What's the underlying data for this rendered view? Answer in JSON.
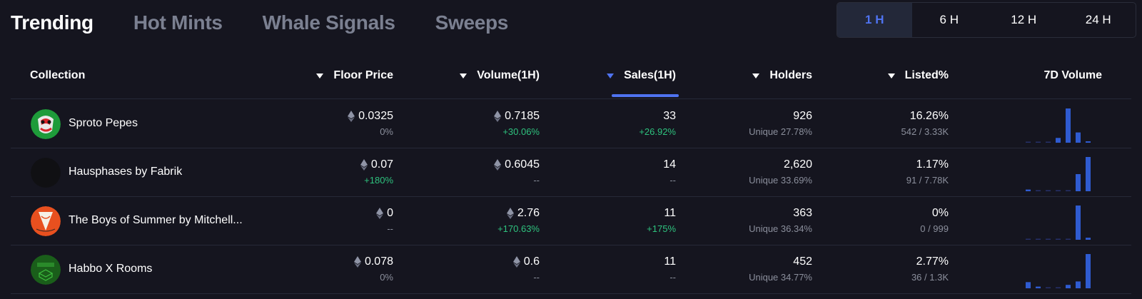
{
  "tabs": [
    {
      "label": "Trending",
      "active": true
    },
    {
      "label": "Hot Mints",
      "active": false
    },
    {
      "label": "Whale Signals",
      "active": false
    },
    {
      "label": "Sweeps",
      "active": false
    }
  ],
  "time_filters": [
    {
      "label": "1 H",
      "active": true
    },
    {
      "label": "6 H",
      "active": false
    },
    {
      "label": "12 H",
      "active": false
    },
    {
      "label": "24 H",
      "active": false
    }
  ],
  "columns": {
    "collection": "Collection",
    "floor_price": "Floor Price",
    "volume": "Volume(1H)",
    "sales": "Sales(1H)",
    "holders": "Holders",
    "listed": "Listed%",
    "volume_7d": "7D Volume"
  },
  "sorted_column": "sales",
  "colors": {
    "accent": "#4f73f0",
    "positive": "#2ec27e",
    "bar": "#2f5bd0",
    "bar_baseline": "#25306a"
  },
  "icons": {
    "currency": "ethereum-icon",
    "sort": "caret-down-icon"
  },
  "rows": [
    {
      "name": "Sproto Pepes",
      "avatar": "sproto-pepes-avatar",
      "floor": "0.0325",
      "floor_change": "0%",
      "floor_positive": false,
      "volume": "0.7185",
      "volume_change": "+30.06%",
      "volume_positive": true,
      "sales": "33",
      "sales_change": "+26.92%",
      "sales_positive": true,
      "holders": "926",
      "holders_unique": "Unique 27.78%",
      "listed": "16.26%",
      "listed_ratio": "542 / 3.33K",
      "volume_7d": [
        0,
        0,
        0,
        0.14,
        1,
        0.3,
        0.03
      ]
    },
    {
      "name": "Hausphases by Fabrik",
      "avatar": "hausphases-avatar",
      "floor": "0.07",
      "floor_change": "+180%",
      "floor_positive": true,
      "volume": "0.6045",
      "volume_change": "--",
      "volume_positive": false,
      "sales": "14",
      "sales_change": "--",
      "sales_positive": false,
      "holders": "2,620",
      "holders_unique": "Unique 33.69%",
      "listed": "1.17%",
      "listed_ratio": "91 / 7.78K",
      "volume_7d": [
        0.05,
        0,
        0,
        0,
        0,
        0.5,
        1
      ]
    },
    {
      "name": "The Boys of Summer by Mitchell...",
      "avatar": "boys-of-summer-avatar",
      "floor": "0",
      "floor_change": "--",
      "floor_positive": false,
      "volume": "2.76",
      "volume_change": "+170.63%",
      "volume_positive": true,
      "sales": "11",
      "sales_change": "+175%",
      "sales_positive": true,
      "holders": "363",
      "holders_unique": "Unique 36.34%",
      "listed": "0%",
      "listed_ratio": "0 / 999",
      "volume_7d": [
        0,
        0,
        0,
        0,
        0,
        1,
        0.06
      ]
    },
    {
      "name": "Habbo X Rooms",
      "avatar": "habbo-rooms-avatar",
      "floor": "0.078",
      "floor_change": "0%",
      "floor_positive": false,
      "volume": "0.6",
      "volume_change": "--",
      "volume_positive": false,
      "sales": "11",
      "sales_change": "--",
      "sales_positive": false,
      "holders": "452",
      "holders_unique": "Unique 34.77%",
      "listed": "2.77%",
      "listed_ratio": "36 / 1.3K",
      "volume_7d": [
        0.18,
        0.05,
        0,
        0,
        0.1,
        0.2,
        1
      ]
    }
  ]
}
